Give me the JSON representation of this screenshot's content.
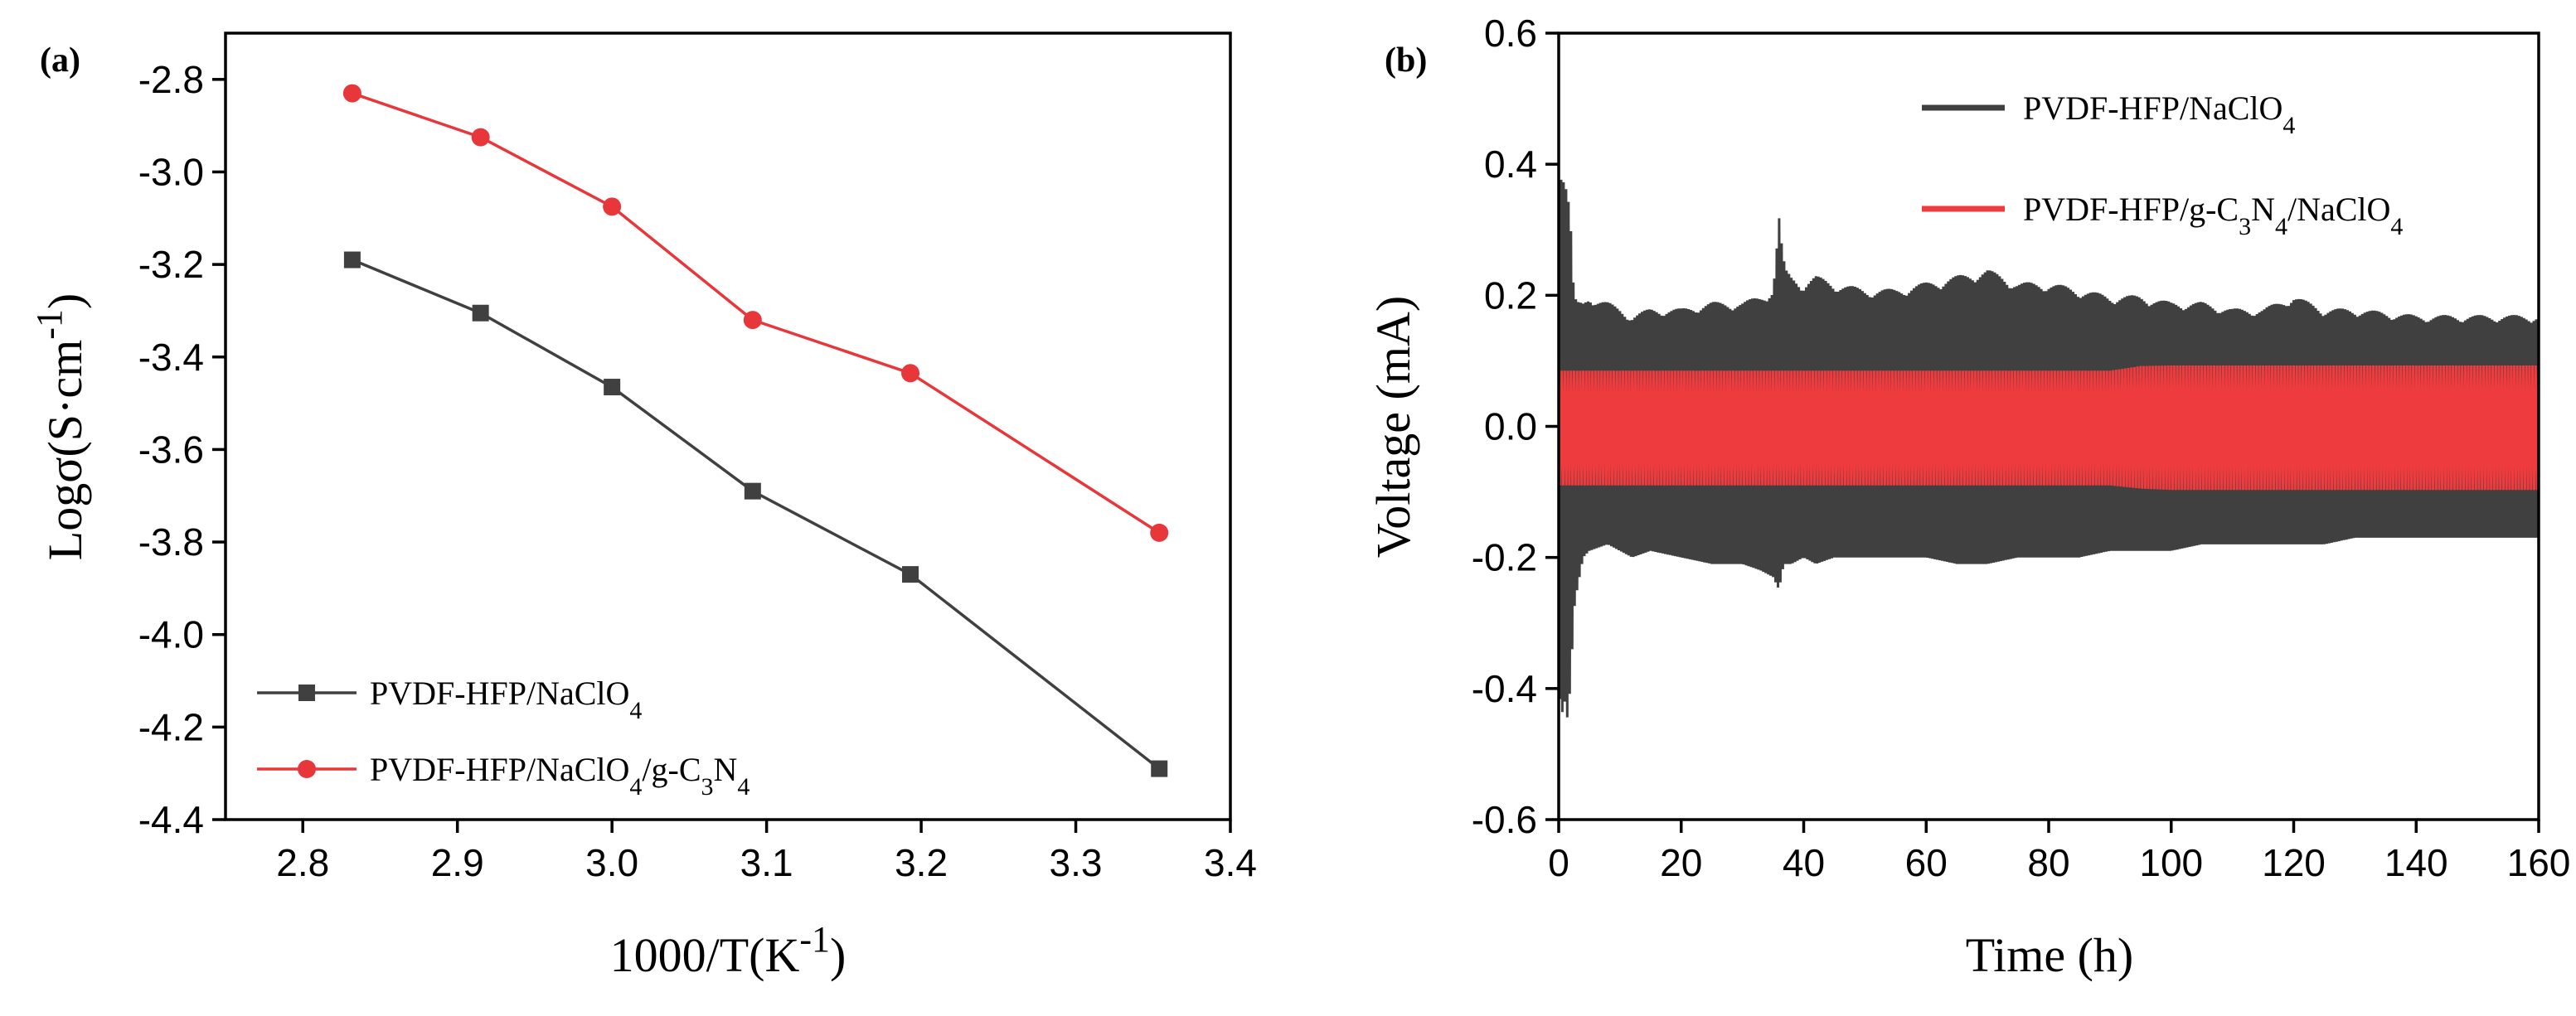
{
  "chart_data": [
    {
      "panel_label": "(a)",
      "type": "line",
      "xlabel": "1000/T(K",
      "xlabel_sup": "-1",
      "xlabel_end": ")",
      "ylabel": "Logσ(S·cm",
      "ylabel_sup": "-1",
      "ylabel_end": ")",
      "xlim": [
        2.75,
        3.4
      ],
      "ylim": [
        -4.4,
        -2.7
      ],
      "xticks": [
        2.8,
        2.9,
        3.0,
        3.1,
        3.2,
        3.3,
        3.4
      ],
      "xtick_labels": [
        "2.8",
        "2.9",
        "3.0",
        "3.1",
        "3.2",
        "3.3",
        "3.4"
      ],
      "yticks": [
        -2.8,
        -3.0,
        -3.2,
        -3.4,
        -3.6,
        -3.8,
        -4.0,
        -4.2,
        -4.4
      ],
      "ytick_labels": [
        "-2.8",
        "-3.0",
        "-3.2",
        "-3.4",
        "-3.6",
        "-3.8",
        "-4.0",
        "-4.2",
        "-4.4"
      ],
      "legend_position": "bottom-left",
      "series": [
        {
          "name_parts": [
            "PVDF-HFP/NaClO",
            "4"
          ],
          "color": "#404040",
          "marker": "square",
          "x": [
            2.832,
            2.915,
            3.0,
            3.091,
            3.193,
            3.354
          ],
          "y": [
            -3.19,
            -3.305,
            -3.465,
            -3.69,
            -3.87,
            -4.29
          ]
        },
        {
          "name_parts": [
            "PVDF-HFP/NaClO",
            "4",
            "/g-C",
            "3",
            "N",
            "4"
          ],
          "color": "#e8373b",
          "marker": "circle",
          "x": [
            2.832,
            2.915,
            3.0,
            3.091,
            3.193,
            3.354
          ],
          "y": [
            -2.83,
            -2.925,
            -3.075,
            -3.32,
            -3.435,
            -3.78
          ]
        }
      ]
    },
    {
      "panel_label": "(b)",
      "type": "line",
      "xlabel": "Time (h)",
      "ylabel": "Voltage (mA)",
      "xlim": [
        0,
        160
      ],
      "ylim": [
        -0.6,
        0.6
      ],
      "xticks": [
        0,
        20,
        40,
        60,
        80,
        100,
        120,
        140,
        160
      ],
      "xtick_labels": [
        "0",
        "20",
        "40",
        "60",
        "80",
        "100",
        "120",
        "140",
        "160"
      ],
      "yticks": [
        0.6,
        0.4,
        0.2,
        0.0,
        -0.2,
        -0.4,
        -0.6
      ],
      "ytick_labels": [
        "0.6",
        "0.4",
        "0.2",
        "0.0",
        "-0.2",
        "-0.4",
        "-0.6"
      ],
      "legend_position": "top-right",
      "series": [
        {
          "name_parts": [
            "PVDF-HFP/NaClO",
            "4"
          ],
          "color": "#404040",
          "envelope_time": [
            0,
            0.5,
            1,
            1.5,
            2,
            2.5,
            3,
            4,
            5,
            8,
            10,
            12,
            15,
            20,
            25,
            30,
            33,
            35,
            36,
            36.5,
            37,
            38,
            40,
            42,
            45,
            50,
            55,
            60,
            65,
            70,
            75,
            80,
            85,
            90,
            95,
            100,
            105,
            110,
            115,
            120,
            125,
            130,
            140,
            150,
            160
          ],
          "envelope_upper": [
            0.39,
            0.4,
            0.38,
            0.36,
            0.3,
            0.2,
            0.19,
            0.19,
            0.2,
            0.19,
            0.18,
            0.17,
            0.18,
            0.18,
            0.19,
            0.19,
            0.2,
            0.21,
            0.32,
            0.27,
            0.24,
            0.23,
            0.22,
            0.23,
            0.22,
            0.21,
            0.21,
            0.22,
            0.23,
            0.24,
            0.22,
            0.22,
            0.21,
            0.2,
            0.2,
            0.19,
            0.19,
            0.18,
            0.18,
            0.2,
            0.18,
            0.18,
            0.17,
            0.17,
            0.17
          ],
          "envelope_lower": [
            -0.4,
            -0.44,
            -0.42,
            -0.45,
            -0.38,
            -0.28,
            -0.25,
            -0.2,
            -0.19,
            -0.18,
            -0.19,
            -0.2,
            -0.19,
            -0.2,
            -0.21,
            -0.21,
            -0.22,
            -0.23,
            -0.25,
            -0.22,
            -0.21,
            -0.21,
            -0.2,
            -0.21,
            -0.2,
            -0.2,
            -0.2,
            -0.2,
            -0.21,
            -0.21,
            -0.2,
            -0.2,
            -0.2,
            -0.19,
            -0.19,
            -0.19,
            -0.18,
            -0.18,
            -0.18,
            -0.18,
            -0.18,
            -0.17,
            -0.17,
            -0.17,
            -0.17
          ]
        },
        {
          "name_parts": [
            "PVDF-HFP/g-C",
            "3",
            "N",
            "4",
            "/NaClO",
            "4"
          ],
          "color": "#ee3b3e",
          "envelope_time": [
            0,
            10,
            30,
            60,
            90,
            95,
            100,
            120,
            140,
            160
          ],
          "envelope_upper": [
            0.085,
            0.085,
            0.085,
            0.085,
            0.085,
            0.092,
            0.093,
            0.093,
            0.093,
            0.093
          ],
          "envelope_lower": [
            -0.09,
            -0.09,
            -0.09,
            -0.09,
            -0.09,
            -0.095,
            -0.097,
            -0.097,
            -0.097,
            -0.097
          ]
        }
      ]
    }
  ]
}
